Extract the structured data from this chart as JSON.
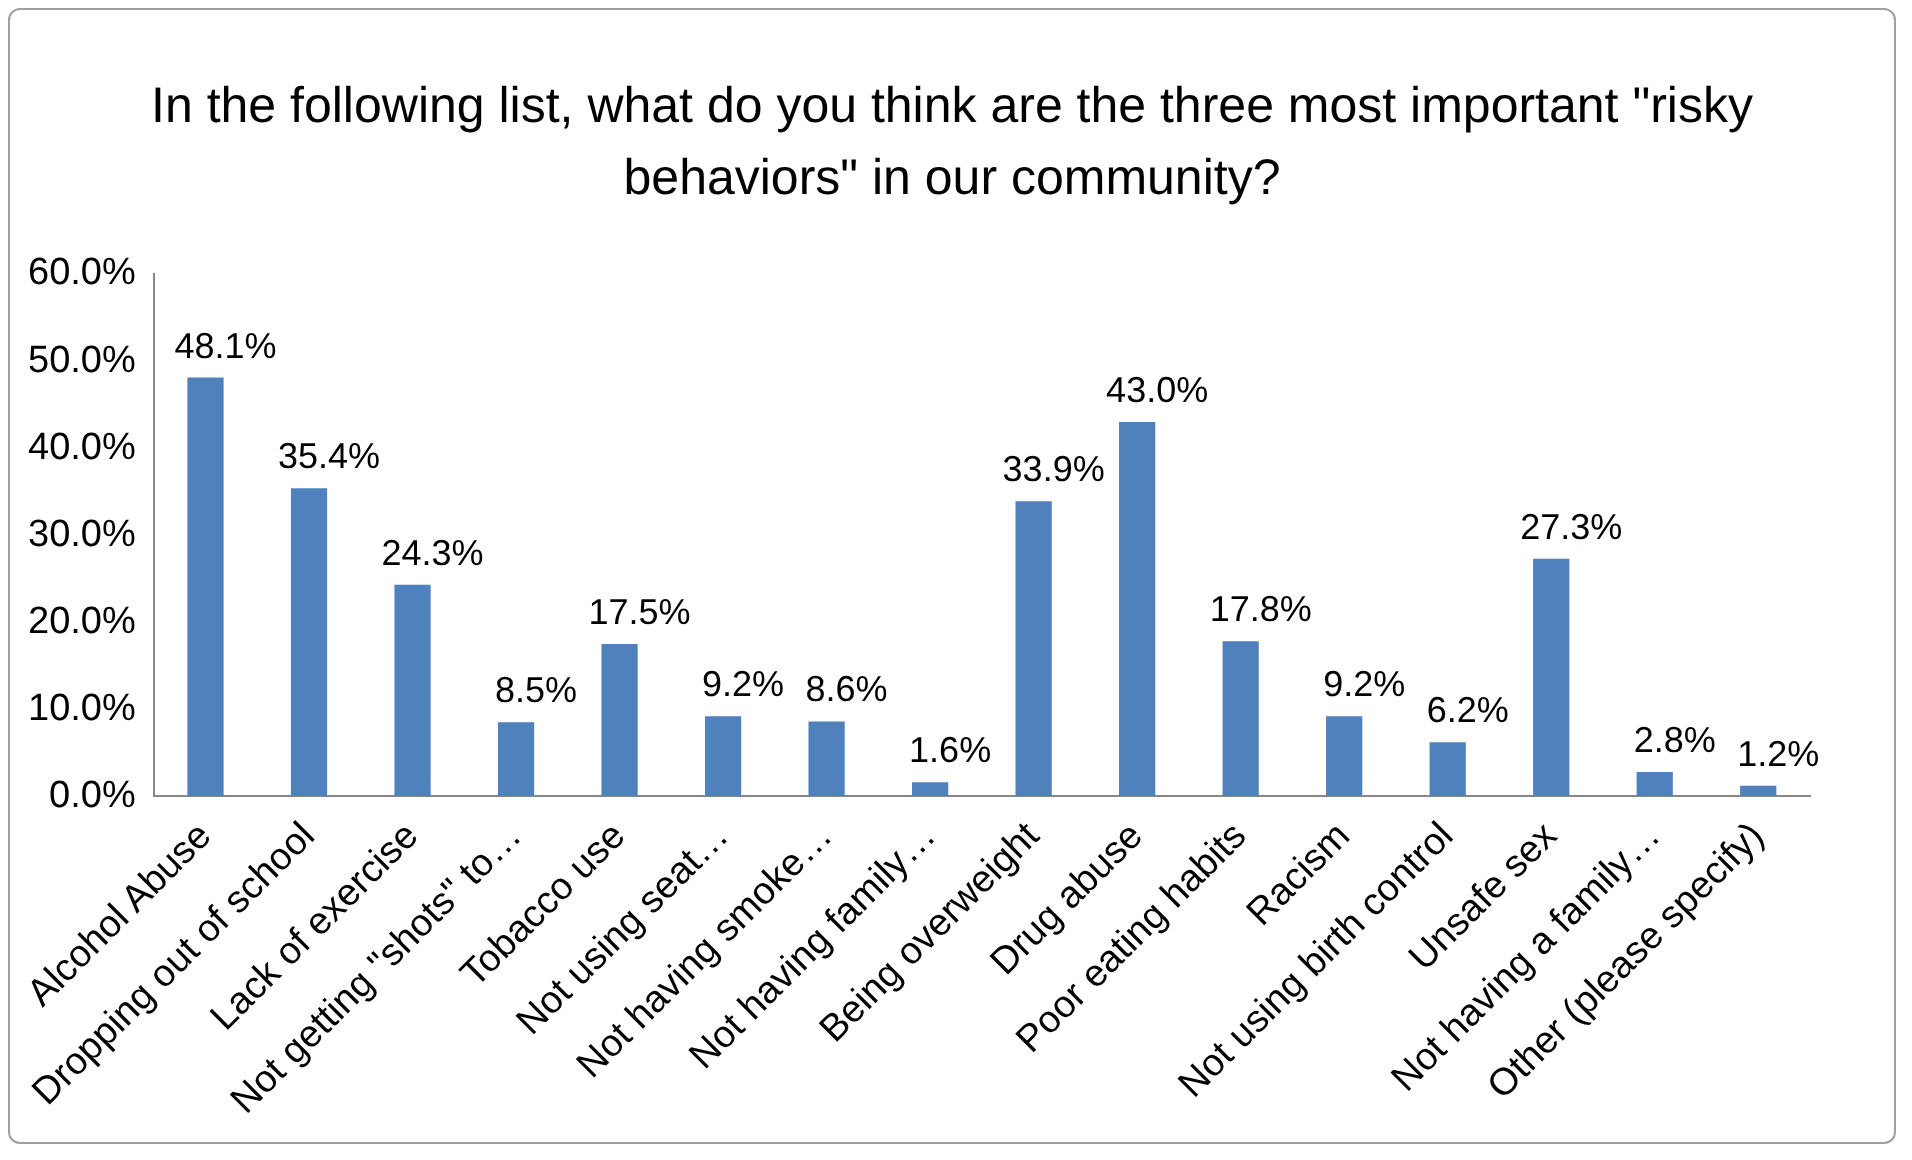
{
  "chart_data": {
    "type": "bar",
    "title": "In the following list, what do you think are the three most important \"risky behaviors\" in our community?",
    "categories": [
      "Alcohol Abuse",
      "Dropping out of school",
      "Lack of exercise",
      "Not getting \"shots\" to…",
      "Tobacco use",
      "Not using seat…",
      "Not having smoke…",
      "Not having family…",
      "Being overweight",
      "Drug abuse",
      "Poor eating habits",
      "Racism",
      "Not using birth control",
      "Unsafe sex",
      "Not having a family…",
      "Other (please specify)"
    ],
    "values": [
      48.1,
      35.4,
      24.3,
      8.5,
      17.5,
      9.2,
      8.6,
      1.6,
      33.9,
      43.0,
      17.8,
      9.2,
      6.2,
      27.3,
      2.8,
      1.2
    ],
    "value_labels": [
      "48.1%",
      "35.4%",
      "24.3%",
      "8.5%",
      "17.5%",
      "9.2%",
      "8.6%",
      "1.6%",
      "33.9%",
      "43.0%",
      "17.8%",
      "9.2%",
      "6.2%",
      "27.3%",
      "2.8%",
      "1.2%"
    ],
    "color": "#4f81bd",
    "ylim": [
      0,
      60
    ],
    "yticks": [
      {
        "value": 0,
        "label": "0.0%"
      },
      {
        "value": 10,
        "label": "10.0%"
      },
      {
        "value": 20,
        "label": "20.0%"
      },
      {
        "value": 30,
        "label": "30.0%"
      },
      {
        "value": 40,
        "label": "40.0%"
      },
      {
        "value": 50,
        "label": "50.0%"
      },
      {
        "value": 60,
        "label": "60.0%"
      }
    ],
    "grid": false,
    "legend": false
  }
}
